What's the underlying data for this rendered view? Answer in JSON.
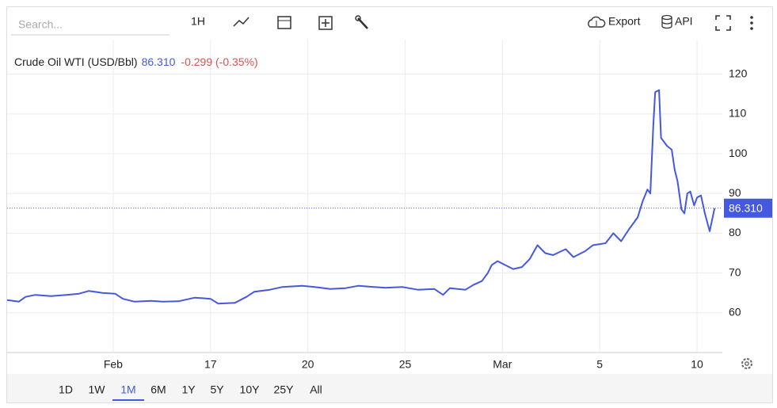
{
  "toolbar": {
    "search_placeholder": "Search...",
    "interval": "1H",
    "export": "Export",
    "api": "API"
  },
  "ranges": {
    "items": [
      "1D",
      "1W",
      "1M",
      "6M",
      "1Y",
      "5Y",
      "10Y",
      "25Y",
      "All"
    ],
    "active": "1M"
  },
  "chart_data": {
    "type": "line",
    "title": "Crude Oil WTI (USD/Bbl)",
    "last": {
      "value": 86.31,
      "label": "86.310"
    },
    "change": "-0.299 (-0.35%)",
    "xlim": [
      -0.09,
      7.26
    ],
    "xticks": [
      {
        "value": 1,
        "label": "Feb"
      },
      {
        "value": 2,
        "label": "17"
      },
      {
        "value": 3,
        "label": "20"
      },
      {
        "value": 4,
        "label": "25"
      },
      {
        "value": 5,
        "label": "Mar"
      },
      {
        "value": 6,
        "label": "5"
      },
      {
        "value": 7,
        "label": "10"
      }
    ],
    "ylim": [
      50,
      128.7
    ],
    "yticks": [
      60,
      70,
      80,
      90,
      100,
      110,
      120
    ],
    "grid": true,
    "series": [
      {
        "name": "Crude Oil WTI (USD/Bbl)",
        "color": "#4458e0",
        "x": [
          -0.09,
          0.03,
          0.1,
          0.2,
          0.36,
          0.52,
          0.65,
          0.75,
          0.89,
          1.02,
          1.1,
          1.22,
          1.39,
          1.51,
          1.67,
          1.84,
          2.0,
          2.08,
          2.25,
          2.37,
          2.45,
          2.61,
          2.74,
          2.94,
          3.07,
          3.23,
          3.39,
          3.52,
          3.68,
          3.8,
          3.97,
          4.13,
          4.3,
          4.39,
          4.46,
          4.62,
          4.7,
          4.79,
          4.85,
          4.89,
          4.95,
          5.03,
          5.11,
          5.2,
          5.28,
          5.36,
          5.44,
          5.52,
          5.65,
          5.73,
          5.85,
          5.93,
          6.06,
          6.14,
          6.22,
          6.3,
          6.39,
          6.44,
          6.49,
          6.52,
          6.55,
          6.57,
          6.61,
          6.63,
          6.69,
          6.74,
          6.77,
          6.8,
          6.84,
          6.87,
          6.9,
          6.93,
          6.97,
          7.0,
          7.04,
          7.08,
          7.13,
          7.18
        ],
        "values": [
          63.2,
          62.8,
          64,
          64.5,
          64.2,
          64.5,
          64.8,
          65.5,
          65,
          64.8,
          63.5,
          62.8,
          63,
          62.8,
          62.9,
          63.8,
          63.5,
          62.3,
          62.5,
          64,
          65.3,
          65.8,
          66.5,
          66.8,
          66.5,
          66,
          66.2,
          66.8,
          66.5,
          66.3,
          66.5,
          65.8,
          66,
          64.5,
          66.2,
          65.8,
          67,
          68,
          70,
          72,
          73,
          72,
          71,
          71.5,
          73.5,
          77,
          75,
          74.5,
          76,
          74,
          75.5,
          77,
          77.5,
          80,
          78,
          81,
          84,
          88,
          91,
          90,
          107,
          115.5,
          116,
          104,
          102,
          101,
          96,
          93,
          86,
          85,
          90,
          90.5,
          87,
          89,
          89.5,
          85,
          80.5,
          86.3
        ]
      }
    ]
  }
}
